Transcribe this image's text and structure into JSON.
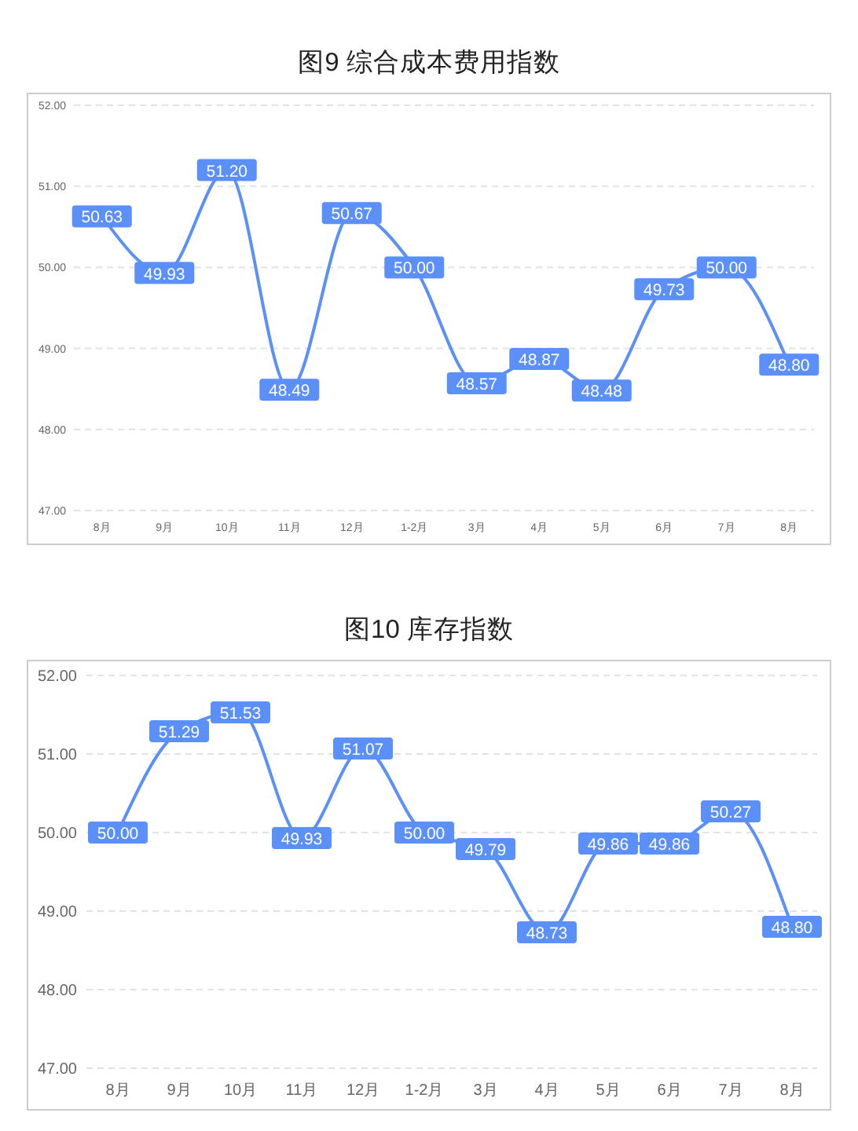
{
  "chart_data": [
    {
      "type": "line",
      "title": "图9 综合成本费用指数",
      "categories": [
        "8月",
        "9月",
        "10月",
        "11月",
        "12月",
        "1-2月",
        "3月",
        "4月",
        "5月",
        "6月",
        "7月",
        "8月"
      ],
      "series": [
        {
          "color": "#5b8ff9",
          "values": [
            50.63,
            49.93,
            51.2,
            48.49,
            50.67,
            50,
            48.57,
            48.87,
            48.48,
            49.73,
            50,
            48.8
          ],
          "value_labels": [
            "50.63",
            "49.93",
            "51.20",
            "48.49",
            "50.67",
            "50.00",
            "48.57",
            "48.87",
            "48.48",
            "49.73",
            "50.00",
            "48.80"
          ]
        }
      ],
      "ylim": [
        47,
        52
      ],
      "yticks": [
        {
          "value": 47,
          "label": "47.00"
        },
        {
          "value": 48,
          "label": "48.00"
        },
        {
          "value": 49,
          "label": "49.00"
        },
        {
          "value": 50,
          "label": "50.00"
        },
        {
          "value": 51,
          "label": "51.00"
        },
        {
          "value": 52,
          "label": "52.00"
        }
      ],
      "grid": "y",
      "line_style": "solid",
      "marker": "square"
    },
    {
      "type": "line",
      "title": "图10 库存指数",
      "categories": [
        "8月",
        "9月",
        "10月",
        "11月",
        "12月",
        "1-2月",
        "3月",
        "4月",
        "5月",
        "6月",
        "7月",
        "8月"
      ],
      "series": [
        {
          "color": "#5b8ff9",
          "values": [
            50,
            51.29,
            51.53,
            49.93,
            51.07,
            50,
            49.79,
            48.73,
            49.86,
            49.86,
            50.27,
            48.8
          ],
          "value_labels": [
            "50.00",
            "51.29",
            "51.53",
            "49.93",
            "51.07",
            "50.00",
            "49.79",
            "48.73",
            "49.86",
            "49.86",
            "50.27",
            "48.80"
          ]
        }
      ],
      "ylim": [
        47,
        52
      ],
      "yticks": [
        {
          "value": 47,
          "label": "47.00"
        },
        {
          "value": 48,
          "label": "48.00"
        },
        {
          "value": 49,
          "label": "49.00"
        },
        {
          "value": 50,
          "label": "50.00"
        },
        {
          "value": 51,
          "label": "51.00"
        },
        {
          "value": 52,
          "label": "52.00"
        }
      ],
      "grid": "y",
      "line_style": "solid",
      "marker": "square"
    }
  ]
}
